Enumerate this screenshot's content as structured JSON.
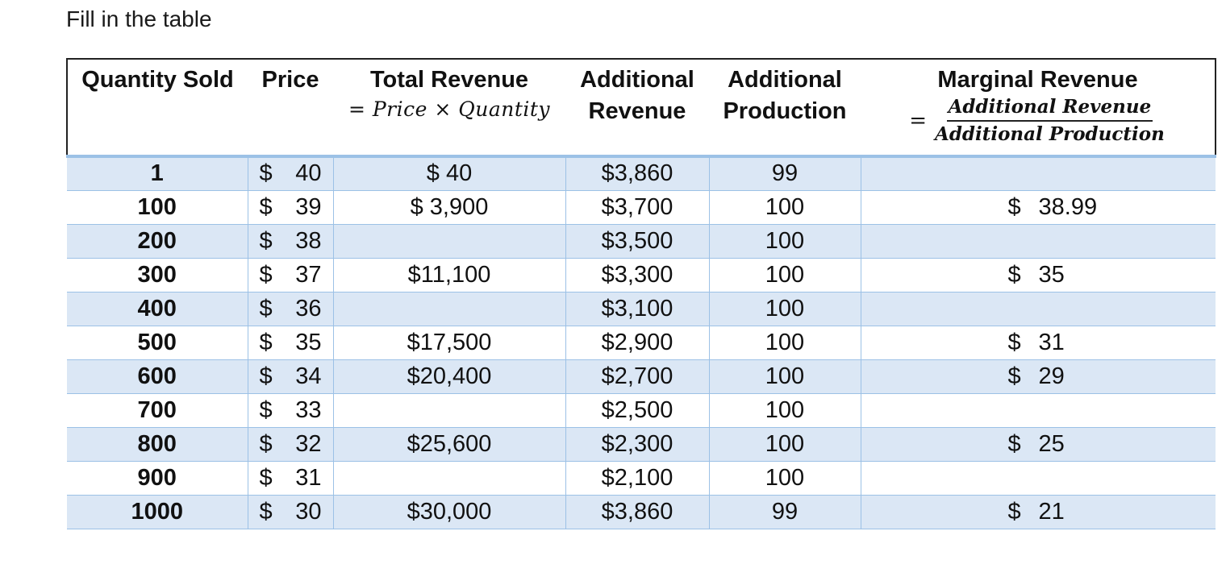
{
  "instructions": "Fill in the table",
  "headers": {
    "quantity": "Quantity Sold",
    "price": "Price",
    "total_revenue": "Total Revenue",
    "total_revenue_formula": "= Price × Quantity",
    "additional_revenue_line1": "Additional",
    "additional_revenue_line2": "Revenue",
    "additional_production_line1": "Additional",
    "additional_production_line2": "Production",
    "marginal_revenue": "Marginal Revenue",
    "mr_eq": "=",
    "mr_numerator": "Additional Revenue",
    "mr_denominator": "Additional Production"
  },
  "rows": [
    {
      "qty": "1",
      "price_sym": "$",
      "price": "40",
      "total_revenue": "$ 40",
      "add_rev": "$3,860",
      "add_prod": "99",
      "mr_sym": "",
      "mr": ""
    },
    {
      "qty": "100",
      "price_sym": "$",
      "price": "39",
      "total_revenue": "$ 3,900",
      "add_rev": "$3,700",
      "add_prod": "100",
      "mr_sym": "$",
      "mr": "38.99"
    },
    {
      "qty": "200",
      "price_sym": "$",
      "price": "38",
      "total_revenue": "",
      "add_rev": "$3,500",
      "add_prod": "100",
      "mr_sym": "",
      "mr": ""
    },
    {
      "qty": "300",
      "price_sym": "$",
      "price": "37",
      "total_revenue": "$11,100",
      "add_rev": "$3,300",
      "add_prod": "100",
      "mr_sym": "$",
      "mr": "35"
    },
    {
      "qty": "400",
      "price_sym": "$",
      "price": "36",
      "total_revenue": "",
      "add_rev": "$3,100",
      "add_prod": "100",
      "mr_sym": "",
      "mr": ""
    },
    {
      "qty": "500",
      "price_sym": "$",
      "price": "35",
      "total_revenue": "$17,500",
      "add_rev": "$2,900",
      "add_prod": "100",
      "mr_sym": "$",
      "mr": "31"
    },
    {
      "qty": "600",
      "price_sym": "$",
      "price": "34",
      "total_revenue": "$20,400",
      "add_rev": "$2,700",
      "add_prod": "100",
      "mr_sym": "$",
      "mr": "29"
    },
    {
      "qty": "700",
      "price_sym": "$",
      "price": "33",
      "total_revenue": "",
      "add_rev": "$2,500",
      "add_prod": "100",
      "mr_sym": "",
      "mr": ""
    },
    {
      "qty": "800",
      "price_sym": "$",
      "price": "32",
      "total_revenue": "$25,600",
      "add_rev": "$2,300",
      "add_prod": "100",
      "mr_sym": "$",
      "mr": "25"
    },
    {
      "qty": "900",
      "price_sym": "$",
      "price": "31",
      "total_revenue": "",
      "add_rev": "$2,100",
      "add_prod": "100",
      "mr_sym": "",
      "mr": ""
    },
    {
      "qty": "1000",
      "price_sym": "$",
      "price": "30",
      "total_revenue": "$30,000",
      "add_rev": "$3,860",
      "add_prod": "99",
      "mr_sym": "$",
      "mr": "21"
    }
  ]
}
